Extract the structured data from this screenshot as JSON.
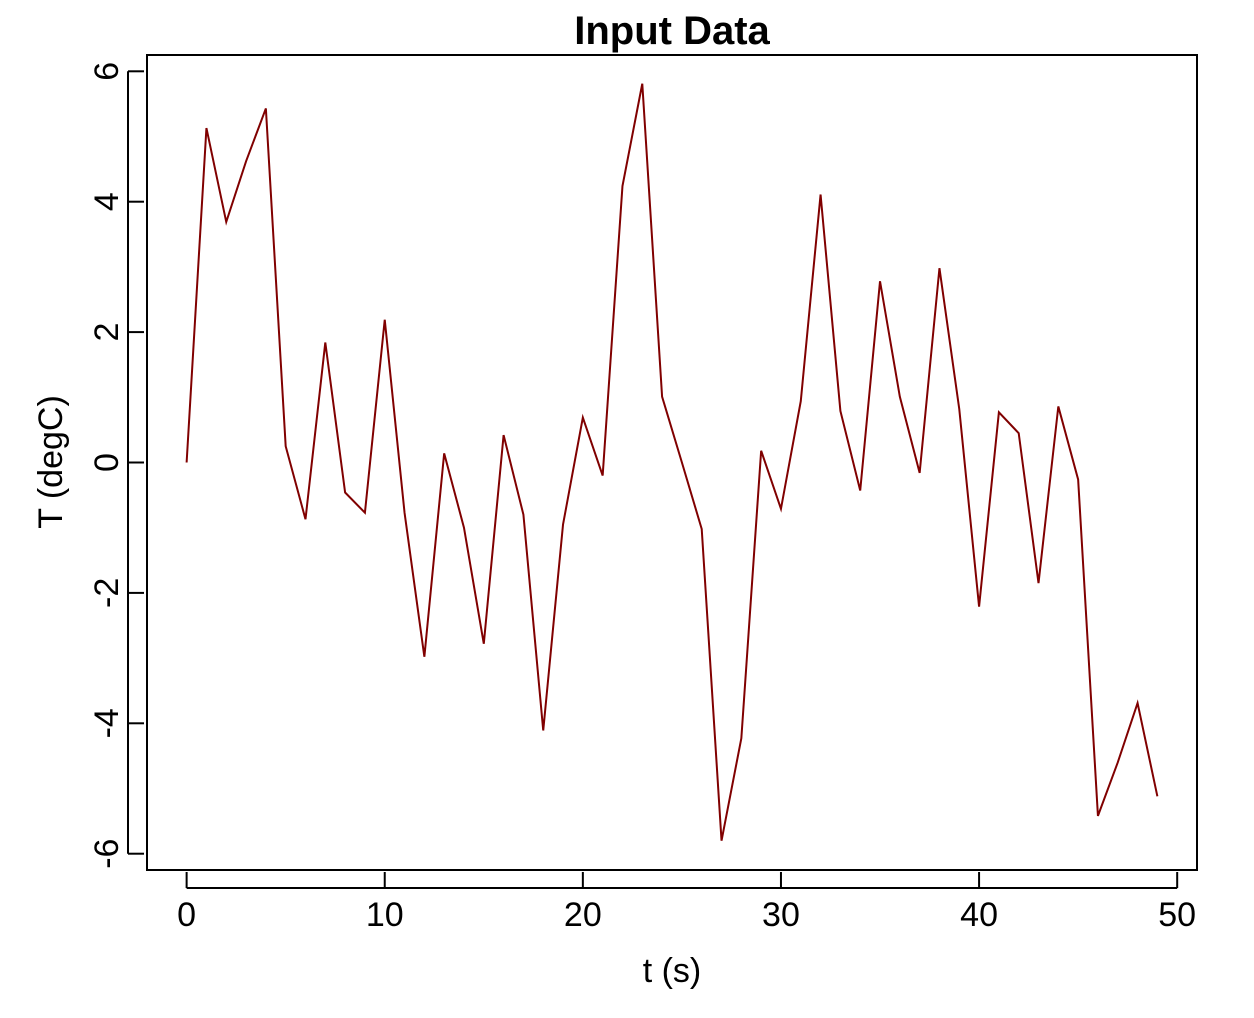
{
  "chart_data": {
    "type": "line",
    "title": "Input Data",
    "xlabel": "t (s)",
    "ylabel": "T (degC)",
    "xlim": [
      -2,
      51
    ],
    "ylim": [
      -6.25,
      6.25
    ],
    "xticks": [
      0,
      10,
      20,
      30,
      40,
      50
    ],
    "yticks": [
      -6,
      -4,
      -2,
      0,
      2,
      4,
      6
    ],
    "grid": false,
    "legend": "none",
    "series": [
      {
        "color": "#800000",
        "x": [
          0,
          1,
          2,
          3,
          4,
          5,
          6,
          7,
          8,
          9,
          10,
          11,
          12,
          13,
          14,
          15,
          16,
          17,
          18,
          19,
          20,
          21,
          22,
          23,
          24,
          25,
          26,
          27,
          28,
          29,
          30,
          31,
          32,
          33,
          34,
          35,
          36,
          37,
          38,
          39,
          40,
          41,
          42,
          43,
          44,
          45,
          46,
          47,
          48,
          49
        ],
        "y": [
          0,
          5.13,
          3.69,
          4.62,
          5.43,
          0.25,
          -0.87,
          1.84,
          -0.46,
          -0.77,
          2.19,
          -0.77,
          -2.98,
          0.14,
          -1.0,
          -2.78,
          0.42,
          -0.8,
          -4.11,
          -0.95,
          0.69,
          -0.2,
          4.24,
          5.81,
          1.01,
          0.0,
          -1.02,
          -5.8,
          -4.23,
          0.18,
          -0.71,
          0.94,
          4.11,
          0.79,
          -0.43,
          2.78,
          1.01,
          -0.16,
          2.98,
          0.82,
          -2.21,
          0.77,
          0.45,
          -1.85,
          0.86,
          -0.26,
          -5.42,
          -4.6,
          -3.69,
          -5.12
        ]
      }
    ]
  }
}
